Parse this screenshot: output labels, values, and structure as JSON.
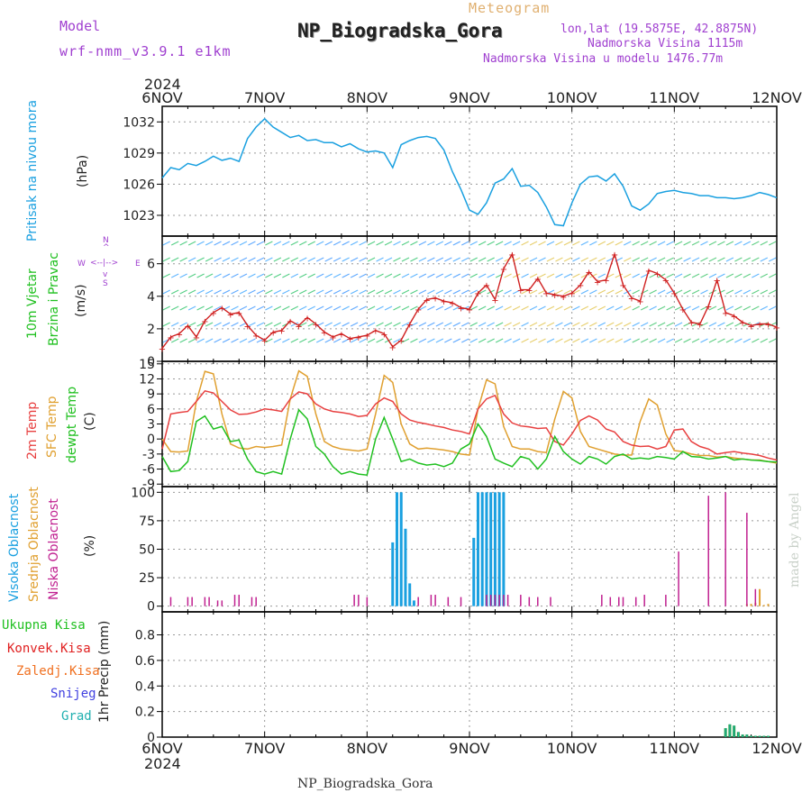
{
  "header": {
    "model_label": "Model",
    "model_name": "wrf-nmm_v3.9.1 e1km",
    "product": "Meteogram",
    "station": "NP_Biogradska_Gora",
    "coords": "lon,lat (19.5875E, 42.8875N)",
    "elevation": "Nadmorska Visina 1115m",
    "model_elevation": "Nadmorska Visina u modelu 1476.77m",
    "year": "2024",
    "footer_station": "NP_Biogradska_Gora",
    "watermark": "made by Angel"
  },
  "colors": {
    "pressure": "#1aa0e0",
    "wind_speed": "#d02020",
    "t2m": "#e84040",
    "tsfc": "#e0a030",
    "dewpt": "#20c020",
    "high_cloud": "#1aa0e0",
    "mid_cloud": "#e0a030",
    "low_cloud": "#c02090",
    "precip_total": "#20a040",
    "precip_conv": "#e02020",
    "precip_frozen": "#f07020",
    "snow": "#4040e0",
    "graupel": "#20b0b0"
  },
  "panel_labels": {
    "pressure": [
      "Pritisak na nivou mora",
      "(hPa)"
    ],
    "wind": [
      "10m Vjetar",
      "Brzina i Pravac",
      "(m/s)"
    ],
    "temp": [
      "2m Temp",
      "SFC Temp",
      "dewpt Temp",
      "(C)"
    ],
    "cloud": [
      "Visoka Oblacnost",
      "Srednja Oblacnost",
      "Niska Oblacnost",
      "(%)"
    ],
    "precip": [
      "Ukupna Kisa",
      "Konvek.Kisa",
      "Zaledj.Kisa",
      "Snijeg",
      "Grad"
    ],
    "precip_axis": "1hr Precip (mm)",
    "compass": [
      "N",
      "S",
      "W",
      "E"
    ]
  },
  "chart_data": [
    {
      "type": "line",
      "panel": "pressure",
      "x_unit": "hours since 6NOV 00 UTC",
      "x_ticks": [
        "6NOV",
        "7NOV",
        "8NOV",
        "9NOV",
        "10NOV",
        "11NOV",
        "12NOV"
      ],
      "yticks": [
        1023,
        1026,
        1029,
        1032
      ],
      "ylim": [
        1021,
        1033.5
      ],
      "series": [
        {
          "name": "Pritisak na nivou mora",
          "x": [
            0,
            2,
            4,
            6,
            8,
            10,
            12,
            14,
            16,
            18,
            20,
            22,
            24,
            26,
            28,
            30,
            32,
            34,
            36,
            38,
            40,
            42,
            44,
            46,
            48,
            50,
            52,
            54,
            56,
            58,
            60,
            62,
            64,
            66,
            68,
            70,
            72,
            74,
            76,
            78,
            80,
            82,
            84,
            86,
            88,
            90,
            92,
            94,
            96,
            98,
            100,
            102,
            104,
            106,
            108,
            110,
            112,
            114,
            116,
            118,
            120,
            122,
            124,
            126,
            128,
            130,
            132,
            134,
            136,
            138,
            140,
            142,
            144
          ],
          "y": [
            1026.6,
            1027.6,
            1027.4,
            1028.0,
            1027.8,
            1028.2,
            1028.7,
            1028.3,
            1028.5,
            1028.2,
            1030.4,
            1031.5,
            1032.3,
            1031.5,
            1031.0,
            1030.5,
            1030.7,
            1030.2,
            1030.3,
            1030.0,
            1030.0,
            1029.6,
            1029.9,
            1029.4,
            1029.1,
            1029.2,
            1029.0,
            1027.6,
            1029.8,
            1030.2,
            1030.5,
            1030.6,
            1030.4,
            1029.3,
            1027.2,
            1025.5,
            1023.5,
            1023.1,
            1024.2,
            1026.1,
            1026.5,
            1027.5,
            1025.8,
            1025.9,
            1025.2,
            1023.8,
            1022.1,
            1022.0,
            1024.2,
            1026.0,
            1026.7,
            1026.8,
            1026.3,
            1027.0,
            1025.8,
            1023.9,
            1023.5,
            1024.1,
            1025.1,
            1025.3,
            1025.4,
            1025.2,
            1025.1,
            1024.9,
            1024.9,
            1024.7,
            1024.7,
            1024.6,
            1024.7,
            1024.9,
            1025.2,
            1025.0,
            1024.7
          ]
        }
      ]
    },
    {
      "type": "line",
      "panel": "wind",
      "yticks": [
        0,
        2,
        4,
        6
      ],
      "ylim": [
        0,
        7.7
      ],
      "series": [
        {
          "name": "Brzina",
          "x": [
            0,
            2,
            4,
            6,
            8,
            10,
            12,
            14,
            16,
            18,
            20,
            22,
            24,
            26,
            28,
            30,
            32,
            34,
            36,
            38,
            40,
            42,
            44,
            46,
            48,
            50,
            52,
            54,
            56,
            58,
            60,
            62,
            64,
            66,
            68,
            70,
            72,
            74,
            76,
            78,
            80,
            82,
            84,
            86,
            88,
            90,
            92,
            94,
            96,
            98,
            100,
            102,
            104,
            106,
            108,
            110,
            112,
            114,
            116,
            118,
            120,
            122,
            124,
            126,
            128,
            130,
            132,
            134,
            136,
            138,
            140,
            142,
            144
          ],
          "y": [
            0.8,
            1.5,
            1.7,
            2.2,
            1.5,
            2.5,
            3.0,
            3.3,
            2.9,
            3.0,
            2.2,
            1.6,
            1.3,
            1.8,
            1.9,
            2.5,
            2.2,
            2.7,
            2.3,
            1.8,
            1.5,
            1.7,
            1.4,
            1.5,
            1.6,
            1.9,
            1.7,
            0.9,
            1.3,
            2.3,
            3.2,
            3.8,
            3.9,
            3.7,
            3.6,
            3.3,
            3.2,
            4.2,
            4.7,
            3.8,
            5.7,
            6.6,
            4.4,
            4.4,
            5.1,
            4.2,
            4.1,
            4.0,
            4.2,
            4.7,
            5.5,
            4.9,
            5.0,
            6.6,
            4.7,
            3.9,
            3.7,
            5.6,
            5.4,
            5.0,
            4.2,
            3.2,
            2.4,
            2.3,
            3.4,
            5.0,
            3.0,
            2.8,
            2.4,
            2.2,
            2.3,
            2.3,
            2.1
          ]
        }
      ]
    },
    {
      "type": "line",
      "panel": "temperature",
      "yticks": [
        -9,
        -6,
        -3,
        0,
        3,
        6,
        9,
        12,
        15
      ],
      "ylim": [
        -9.5,
        15.5
      ],
      "series": [
        {
          "name": "2m Temp",
          "x": [
            0,
            2,
            4,
            6,
            8,
            10,
            12,
            14,
            16,
            18,
            20,
            22,
            24,
            26,
            28,
            30,
            32,
            34,
            36,
            38,
            40,
            42,
            44,
            46,
            48,
            50,
            52,
            54,
            56,
            58,
            60,
            62,
            64,
            66,
            68,
            70,
            72,
            74,
            76,
            78,
            80,
            82,
            84,
            86,
            88,
            90,
            92,
            94,
            96,
            98,
            100,
            102,
            104,
            106,
            108,
            110,
            112,
            114,
            116,
            118,
            120,
            122,
            124,
            126,
            128,
            130,
            132,
            134,
            136,
            138,
            140,
            142,
            144
          ],
          "y": [
            -2.0,
            5.0,
            5.3,
            5.5,
            7.5,
            9.6,
            9.2,
            7.5,
            5.8,
            4.9,
            5.0,
            5.4,
            6.0,
            5.8,
            5.5,
            8.0,
            9.4,
            9.0,
            7.0,
            6.0,
            5.5,
            5.3,
            5.0,
            4.5,
            4.7,
            7.0,
            8.2,
            7.5,
            5.0,
            3.8,
            3.3,
            3.0,
            2.6,
            2.3,
            1.8,
            1.5,
            1.0,
            6.0,
            8.0,
            8.7,
            5.0,
            3.2,
            2.6,
            2.4,
            2.1,
            2.2,
            -0.5,
            -1.2,
            1.0,
            3.7,
            4.6,
            3.8,
            2.0,
            1.4,
            -0.5,
            -1.2,
            -1.5,
            -1.4,
            -2.0,
            -1.5,
            1.8,
            2.0,
            -0.5,
            -1.5,
            -2.0,
            -3.0,
            -2.7,
            -2.5,
            -2.8,
            -3.0,
            -3.3,
            -3.8,
            -4.2
          ]
        },
        {
          "name": "SFC Temp",
          "x": [
            0,
            2,
            4,
            6,
            8,
            10,
            12,
            14,
            16,
            18,
            20,
            22,
            24,
            26,
            28,
            30,
            32,
            34,
            36,
            38,
            40,
            42,
            44,
            46,
            48,
            50,
            52,
            54,
            56,
            58,
            60,
            62,
            64,
            66,
            68,
            70,
            72,
            74,
            76,
            78,
            80,
            82,
            84,
            86,
            88,
            90,
            92,
            94,
            96,
            98,
            100,
            102,
            104,
            106,
            108,
            110,
            112,
            114,
            116,
            118,
            120,
            122,
            124,
            126,
            128,
            130,
            132,
            134,
            136,
            138,
            140,
            142,
            144
          ],
          "y": [
            0.0,
            -2.5,
            -2.6,
            -2.4,
            7.5,
            13.5,
            13.0,
            5.0,
            -1.0,
            -1.8,
            -2.0,
            -1.5,
            -1.7,
            -1.5,
            -1.2,
            8.0,
            13.6,
            12.5,
            5.0,
            -0.5,
            -1.5,
            -2.0,
            -2.2,
            -2.4,
            -2.0,
            5.0,
            12.7,
            11.3,
            3.0,
            -1.0,
            -2.0,
            -1.8,
            -2.0,
            -2.2,
            -2.5,
            -3.0,
            -3.2,
            6.0,
            11.8,
            11.0,
            2.5,
            -1.5,
            -2.0,
            -2.0,
            -2.5,
            -2.7,
            4.0,
            9.5,
            8.2,
            1.5,
            -1.5,
            -2.0,
            -2.5,
            -3.0,
            -3.2,
            -3.2,
            3.5,
            8.0,
            6.8,
            1.0,
            -2.3,
            -2.5,
            -3.0,
            -3.3,
            -3.3,
            -3.6,
            -3.5,
            -3.8,
            -4.0,
            -4.2,
            -4.2,
            -4.5,
            -4.8
          ]
        },
        {
          "name": "dewpt Temp",
          "x": [
            0,
            2,
            4,
            6,
            8,
            10,
            12,
            14,
            16,
            18,
            20,
            22,
            24,
            26,
            28,
            30,
            32,
            34,
            36,
            38,
            40,
            42,
            44,
            46,
            48,
            50,
            52,
            54,
            56,
            58,
            60,
            62,
            64,
            66,
            68,
            70,
            72,
            74,
            76,
            78,
            80,
            82,
            84,
            86,
            88,
            90,
            92,
            94,
            96,
            98,
            100,
            102,
            104,
            106,
            108,
            110,
            112,
            114,
            116,
            118,
            120,
            122,
            124,
            126,
            128,
            130,
            132,
            134,
            136,
            138,
            140,
            142,
            144
          ],
          "y": [
            -3.5,
            -6.5,
            -6.3,
            -4.5,
            3.5,
            4.6,
            2.0,
            2.5,
            -0.5,
            -0.2,
            -4.0,
            -6.5,
            -7.0,
            -6.5,
            -7.0,
            0.0,
            5.8,
            4.0,
            -1.5,
            -3.0,
            -5.5,
            -7.0,
            -6.5,
            -7.0,
            -7.2,
            0.0,
            4.3,
            0.0,
            -4.5,
            -4.0,
            -4.8,
            -5.2,
            -5.0,
            -5.5,
            -4.8,
            -2.0,
            -1.0,
            3.0,
            0.5,
            -4.0,
            -4.8,
            -5.5,
            -3.5,
            -4.0,
            -6.0,
            -4.0,
            0.5,
            -2.5,
            -4.0,
            -5.0,
            -3.5,
            -4.0,
            -5.0,
            -3.5,
            -3.0,
            -4.0,
            -3.8,
            -4.0,
            -3.5,
            -3.7,
            -4.0,
            -2.5,
            -3.5,
            -3.6,
            -4.0,
            -3.8,
            -3.5,
            -4.2,
            -4.0,
            -4.2,
            -4.3,
            -4.5,
            -4.6
          ]
        }
      ]
    },
    {
      "type": "bar",
      "panel": "cloud",
      "yticks": [
        0,
        25,
        50,
        75,
        100
      ],
      "ylim": [
        -5,
        105
      ],
      "series": [
        {
          "name": "Visoka Oblacnost",
          "x": [
            54,
            55,
            56,
            57,
            58,
            59,
            73,
            74,
            75,
            76,
            77,
            78,
            79,
            80
          ],
          "y": [
            56,
            100,
            100,
            68,
            20,
            5,
            60,
            100,
            100,
            100,
            100,
            100,
            100,
            100
          ]
        },
        {
          "name": "Srednja Oblacnost",
          "x": [
            137,
            138,
            139,
            140,
            141,
            142
          ],
          "y": [
            2,
            2,
            3,
            15,
            1,
            2
          ]
        },
        {
          "name": "Niska Oblacnost",
          "x": [
            2,
            6,
            7,
            10,
            11,
            13,
            14,
            17,
            18,
            21,
            22,
            45,
            46,
            48,
            60,
            63,
            64,
            67,
            70,
            76,
            77,
            78,
            79,
            80,
            81,
            84,
            86,
            88,
            91,
            103,
            105,
            107,
            108,
            111,
            113,
            118,
            121,
            128,
            132,
            137,
            139
          ],
          "y": [
            8,
            8,
            8,
            8,
            8,
            5,
            5,
            10,
            10,
            8,
            8,
            10,
            10,
            8,
            8,
            10,
            10,
            8,
            8,
            10,
            10,
            10,
            10,
            10,
            10,
            10,
            8,
            8,
            8,
            10,
            8,
            8,
            8,
            8,
            10,
            10,
            48,
            97,
            100,
            82,
            15
          ]
        }
      ]
    },
    {
      "type": "bar",
      "panel": "precip",
      "yticks": [
        0,
        0.2,
        0.4,
        0.6,
        0.8
      ],
      "ylim": [
        0,
        0.98
      ],
      "series": [
        {
          "name": "Ukupna Kisa",
          "x": [
            132,
            133,
            134,
            135,
            136,
            137,
            138,
            139,
            140,
            141,
            142
          ],
          "y": [
            0.07,
            0.1,
            0.09,
            0.04,
            0.02,
            0.02,
            0.01,
            0.01,
            0.01,
            0.01,
            0.01
          ]
        },
        {
          "name": "Grad",
          "x": [
            132,
            133,
            134,
            135,
            136,
            137,
            138,
            139,
            140,
            141,
            142
          ],
          "y": [
            0.07,
            0.1,
            0.09,
            0.04,
            0.02,
            0.02,
            0.01,
            0.01,
            0.01,
            0.01,
            0.01
          ]
        },
        {
          "name": "Konvek.Kisa",
          "x": [],
          "y": []
        },
        {
          "name": "Zaledj.Kisa",
          "x": [],
          "y": []
        },
        {
          "name": "Snijeg",
          "x": [],
          "y": []
        }
      ]
    }
  ]
}
